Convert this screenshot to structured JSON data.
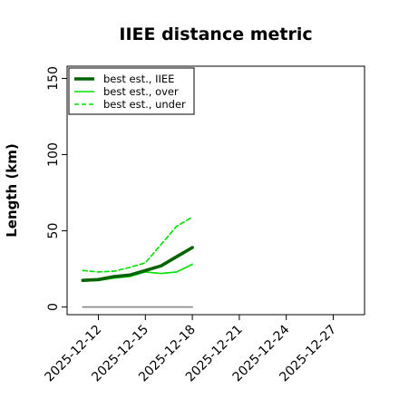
{
  "chart_data": {
    "type": "line",
    "title": "IIEE distance metric",
    "xlabel": "",
    "ylabel": "Length (km)",
    "x_ticks": [
      "2025-12-12",
      "2025-12-15",
      "2025-12-18",
      "2025-12-21",
      "2025-12-24",
      "2025-12-27"
    ],
    "xlim": [
      "2025-12-10",
      "2025-12-29"
    ],
    "ylim": [
      -5,
      158
    ],
    "y_ticks": [
      0,
      50,
      100,
      150
    ],
    "grid": false,
    "legend_position": "top-left",
    "x": [
      "2025-12-11",
      "2025-12-12",
      "2025-12-13",
      "2025-12-14",
      "2025-12-15",
      "2025-12-16",
      "2025-12-17",
      "2025-12-18"
    ],
    "series": [
      {
        "name": "best est., IIEE",
        "color": "#006400",
        "style": "solid-thick",
        "values": [
          17.5,
          18,
          20,
          21,
          24,
          27,
          33,
          39
        ]
      },
      {
        "name": "best est., over",
        "color": "#00e000",
        "style": "solid",
        "values": [
          17,
          17.5,
          19,
          20,
          23,
          22,
          23,
          28
        ]
      },
      {
        "name": "best est., under",
        "color": "#00e000",
        "style": "dashed",
        "values": [
          24,
          23,
          23.5,
          26,
          29,
          41,
          53,
          59
        ]
      },
      {
        "name": "",
        "color": "#888888",
        "style": "solid",
        "values": [
          0,
          0,
          0,
          0,
          0,
          0,
          0,
          0
        ]
      }
    ]
  }
}
